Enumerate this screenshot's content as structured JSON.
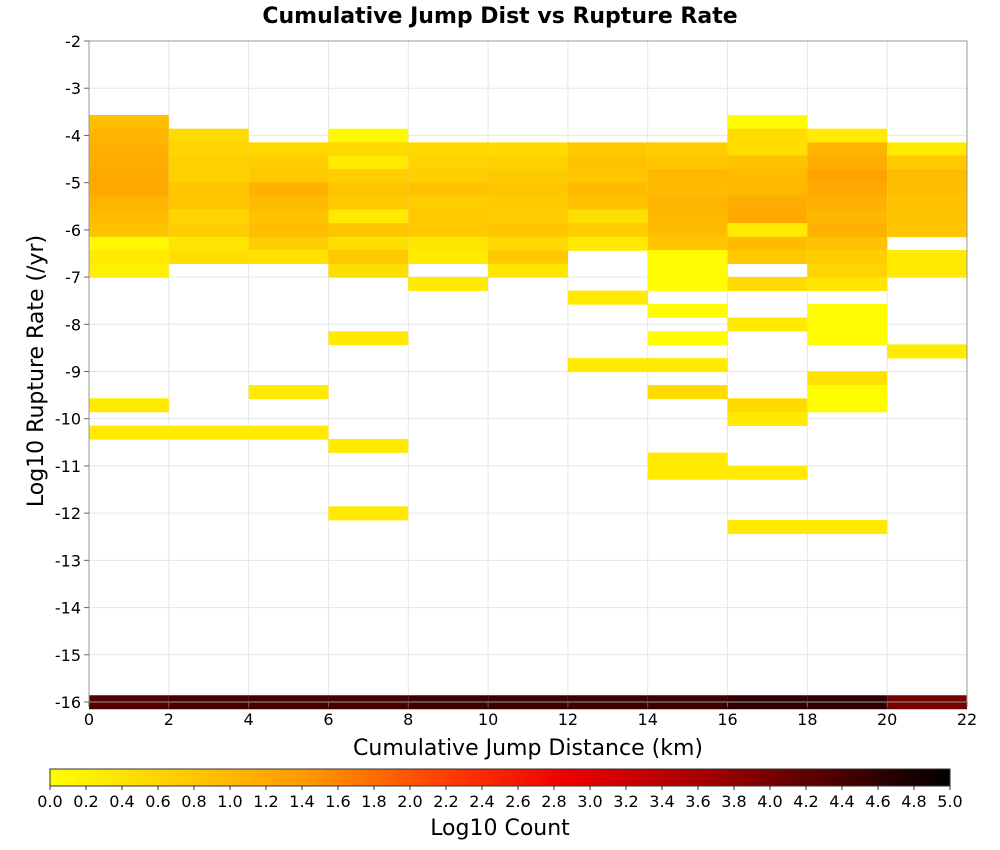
{
  "chart_data": {
    "type": "heatmap",
    "title": "Cumulative Jump Dist vs Rupture Rate",
    "xlabel": "Cumulative Jump Distance (km)",
    "ylabel": "Log10 Rupture Rate (/yr)",
    "xlim": [
      0,
      22
    ],
    "ylim": [
      -16,
      -2
    ],
    "xticks": [
      "0",
      "2",
      "4",
      "6",
      "8",
      "10",
      "12",
      "14",
      "16",
      "18",
      "20",
      "22"
    ],
    "yticks": [
      "-2",
      "-3",
      "-4",
      "-5",
      "-6",
      "-7",
      "-8",
      "-9",
      "-10",
      "-11",
      "-12",
      "-13",
      "-14",
      "-15",
      "-16"
    ],
    "grid": true,
    "colorbar": {
      "label": "Log10 Count",
      "range": [
        0,
        5
      ],
      "ticks": [
        "0.0",
        "0.2",
        "0.4",
        "0.6",
        "0.8",
        "1.0",
        "1.2",
        "1.4",
        "1.6",
        "1.8",
        "2.0",
        "2.2",
        "2.4",
        "2.6",
        "2.8",
        "3.0",
        "3.2",
        "3.4",
        "3.6",
        "3.8",
        "4.0",
        "4.2",
        "4.4",
        "4.6",
        "4.8",
        "5.0"
      ],
      "colormap": [
        "#ffff00",
        "#ffcc00",
        "#ff9900",
        "#ff4400",
        "#ee0000",
        "#aa0000",
        "#550000",
        "#000000"
      ]
    },
    "x_bin_width": 2,
    "y_bin_height": 0.286,
    "cells": [
      {
        "x0": 0,
        "y": -3.71,
        "v": 0.9
      },
      {
        "x0": 0,
        "y": -4.0,
        "v": 1.05
      },
      {
        "x0": 0,
        "y": -4.29,
        "v": 1.1
      },
      {
        "x0": 0,
        "y": -4.57,
        "v": 1.15
      },
      {
        "x0": 0,
        "y": -4.86,
        "v": 1.2
      },
      {
        "x0": 0,
        "y": -5.14,
        "v": 1.2
      },
      {
        "x0": 0,
        "y": -5.43,
        "v": 1.05
      },
      {
        "x0": 0,
        "y": -5.71,
        "v": 0.95
      },
      {
        "x0": 0,
        "y": -6.0,
        "v": 0.85
      },
      {
        "x0": 0,
        "y": -6.29,
        "v": 0.1
      },
      {
        "x0": 0,
        "y": -6.57,
        "v": 0.3
      },
      {
        "x0": 0,
        "y": -6.86,
        "v": 0.2
      },
      {
        "x0": 0,
        "y": -9.71,
        "v": 0.3
      },
      {
        "x0": 0,
        "y": -10.29,
        "v": 0.3
      },
      {
        "x0": 2,
        "y": -4.0,
        "v": 0.5
      },
      {
        "x0": 2,
        "y": -4.29,
        "v": 0.6
      },
      {
        "x0": 2,
        "y": -4.57,
        "v": 0.65
      },
      {
        "x0": 2,
        "y": -4.86,
        "v": 0.65
      },
      {
        "x0": 2,
        "y": -5.14,
        "v": 0.8
      },
      {
        "x0": 2,
        "y": -5.43,
        "v": 0.8
      },
      {
        "x0": 2,
        "y": -5.71,
        "v": 0.6
      },
      {
        "x0": 2,
        "y": -6.0,
        "v": 0.7
      },
      {
        "x0": 2,
        "y": -6.29,
        "v": 0.35
      },
      {
        "x0": 2,
        "y": -6.57,
        "v": 0.45
      },
      {
        "x0": 2,
        "y": -10.29,
        "v": 0.3
      },
      {
        "x0": 4,
        "y": -4.29,
        "v": 0.55
      },
      {
        "x0": 4,
        "y": -4.57,
        "v": 0.7
      },
      {
        "x0": 4,
        "y": -4.86,
        "v": 0.75
      },
      {
        "x0": 4,
        "y": -5.14,
        "v": 1.1
      },
      {
        "x0": 4,
        "y": -5.43,
        "v": 0.95
      },
      {
        "x0": 4,
        "y": -5.71,
        "v": 0.85
      },
      {
        "x0": 4,
        "y": -6.0,
        "v": 0.9
      },
      {
        "x0": 4,
        "y": -6.29,
        "v": 0.7
      },
      {
        "x0": 4,
        "y": -6.57,
        "v": 0.4
      },
      {
        "x0": 4,
        "y": -9.43,
        "v": 0.3
      },
      {
        "x0": 4,
        "y": -10.29,
        "v": 0.3
      },
      {
        "x0": 6,
        "y": -4.0,
        "v": 0.1
      },
      {
        "x0": 6,
        "y": -4.29,
        "v": 0.55
      },
      {
        "x0": 6,
        "y": -4.57,
        "v": 0.3
      },
      {
        "x0": 6,
        "y": -4.86,
        "v": 0.7
      },
      {
        "x0": 6,
        "y": -5.14,
        "v": 0.8
      },
      {
        "x0": 6,
        "y": -5.43,
        "v": 0.75
      },
      {
        "x0": 6,
        "y": -5.71,
        "v": 0.3
      },
      {
        "x0": 6,
        "y": -6.0,
        "v": 0.8
      },
      {
        "x0": 6,
        "y": -6.29,
        "v": 0.45
      },
      {
        "x0": 6,
        "y": -6.57,
        "v": 0.75
      },
      {
        "x0": 6,
        "y": -6.86,
        "v": 0.45
      },
      {
        "x0": 6,
        "y": -8.29,
        "v": 0.3
      },
      {
        "x0": 6,
        "y": -10.57,
        "v": 0.3
      },
      {
        "x0": 6,
        "y": -12.0,
        "v": 0.3
      },
      {
        "x0": 8,
        "y": -4.29,
        "v": 0.55
      },
      {
        "x0": 8,
        "y": -4.57,
        "v": 0.6
      },
      {
        "x0": 8,
        "y": -4.86,
        "v": 0.7
      },
      {
        "x0": 8,
        "y": -5.14,
        "v": 0.85
      },
      {
        "x0": 8,
        "y": -5.43,
        "v": 0.7
      },
      {
        "x0": 8,
        "y": -5.71,
        "v": 0.75
      },
      {
        "x0": 8,
        "y": -6.0,
        "v": 0.75
      },
      {
        "x0": 8,
        "y": -6.29,
        "v": 0.35
      },
      {
        "x0": 8,
        "y": -6.57,
        "v": 0.3
      },
      {
        "x0": 8,
        "y": -7.14,
        "v": 0.3
      },
      {
        "x0": 10,
        "y": -4.29,
        "v": 0.5
      },
      {
        "x0": 10,
        "y": -4.57,
        "v": 0.65
      },
      {
        "x0": 10,
        "y": -4.86,
        "v": 0.75
      },
      {
        "x0": 10,
        "y": -5.14,
        "v": 0.8
      },
      {
        "x0": 10,
        "y": -5.43,
        "v": 0.75
      },
      {
        "x0": 10,
        "y": -5.71,
        "v": 0.7
      },
      {
        "x0": 10,
        "y": -6.0,
        "v": 0.8
      },
      {
        "x0": 10,
        "y": -6.29,
        "v": 0.55
      },
      {
        "x0": 10,
        "y": -6.57,
        "v": 0.75
      },
      {
        "x0": 10,
        "y": -6.86,
        "v": 0.35
      },
      {
        "x0": 12,
        "y": -4.29,
        "v": 0.75
      },
      {
        "x0": 12,
        "y": -4.57,
        "v": 0.85
      },
      {
        "x0": 12,
        "y": -4.86,
        "v": 0.8
      },
      {
        "x0": 12,
        "y": -5.14,
        "v": 0.95
      },
      {
        "x0": 12,
        "y": -5.43,
        "v": 0.85
      },
      {
        "x0": 12,
        "y": -5.71,
        "v": 0.45
      },
      {
        "x0": 12,
        "y": -6.0,
        "v": 0.7
      },
      {
        "x0": 12,
        "y": -6.29,
        "v": 0.3
      },
      {
        "x0": 12,
        "y": -7.43,
        "v": 0.3
      },
      {
        "x0": 12,
        "y": -8.86,
        "v": 0.3
      },
      {
        "x0": 14,
        "y": -4.29,
        "v": 0.7
      },
      {
        "x0": 14,
        "y": -4.57,
        "v": 0.8
      },
      {
        "x0": 14,
        "y": -4.86,
        "v": 1.0
      },
      {
        "x0": 14,
        "y": -5.14,
        "v": 0.95
      },
      {
        "x0": 14,
        "y": -5.43,
        "v": 1.05
      },
      {
        "x0": 14,
        "y": -5.71,
        "v": 1.0
      },
      {
        "x0": 14,
        "y": -6.0,
        "v": 0.95
      },
      {
        "x0": 14,
        "y": -6.29,
        "v": 0.8
      },
      {
        "x0": 14,
        "y": -6.57,
        "v": 0.05
      },
      {
        "x0": 14,
        "y": -6.86,
        "v": 0.05
      },
      {
        "x0": 14,
        "y": -7.14,
        "v": 0.05
      },
      {
        "x0": 14,
        "y": -7.71,
        "v": 0.05
      },
      {
        "x0": 14,
        "y": -8.29,
        "v": 0.05
      },
      {
        "x0": 14,
        "y": -8.86,
        "v": 0.3
      },
      {
        "x0": 14,
        "y": -9.43,
        "v": 0.5
      },
      {
        "x0": 14,
        "y": -10.86,
        "v": 0.3
      },
      {
        "x0": 14,
        "y": -11.14,
        "v": 0.3
      },
      {
        "x0": 16,
        "y": -3.71,
        "v": 0.05
      },
      {
        "x0": 16,
        "y": -4.0,
        "v": 0.5
      },
      {
        "x0": 16,
        "y": -4.29,
        "v": 0.45
      },
      {
        "x0": 16,
        "y": -4.57,
        "v": 0.85
      },
      {
        "x0": 16,
        "y": -4.86,
        "v": 0.95
      },
      {
        "x0": 16,
        "y": -5.14,
        "v": 1.0
      },
      {
        "x0": 16,
        "y": -5.43,
        "v": 1.15
      },
      {
        "x0": 16,
        "y": -5.71,
        "v": 1.2
      },
      {
        "x0": 16,
        "y": -6.0,
        "v": 0.3
      },
      {
        "x0": 16,
        "y": -6.29,
        "v": 0.95
      },
      {
        "x0": 16,
        "y": -6.57,
        "v": 0.75
      },
      {
        "x0": 16,
        "y": -7.14,
        "v": 0.5
      },
      {
        "x0": 16,
        "y": -8.0,
        "v": 0.3
      },
      {
        "x0": 16,
        "y": -9.71,
        "v": 0.5
      },
      {
        "x0": 16,
        "y": -10.0,
        "v": 0.3
      },
      {
        "x0": 16,
        "y": -11.14,
        "v": 0.3
      },
      {
        "x0": 16,
        "y": -12.29,
        "v": 0.3
      },
      {
        "x0": 18,
        "y": -4.0,
        "v": 0.3
      },
      {
        "x0": 18,
        "y": -4.29,
        "v": 1.05
      },
      {
        "x0": 18,
        "y": -4.57,
        "v": 1.15
      },
      {
        "x0": 18,
        "y": -4.86,
        "v": 1.3
      },
      {
        "x0": 18,
        "y": -5.14,
        "v": 1.2
      },
      {
        "x0": 18,
        "y": -5.43,
        "v": 1.1
      },
      {
        "x0": 18,
        "y": -5.71,
        "v": 1.0
      },
      {
        "x0": 18,
        "y": -6.0,
        "v": 1.1
      },
      {
        "x0": 18,
        "y": -6.29,
        "v": 0.85
      },
      {
        "x0": 18,
        "y": -6.57,
        "v": 0.7
      },
      {
        "x0": 18,
        "y": -6.86,
        "v": 0.6
      },
      {
        "x0": 18,
        "y": -7.14,
        "v": 0.35
      },
      {
        "x0": 18,
        "y": -7.71,
        "v": 0.05
      },
      {
        "x0": 18,
        "y": -8.0,
        "v": 0.05
      },
      {
        "x0": 18,
        "y": -8.29,
        "v": 0.05
      },
      {
        "x0": 18,
        "y": -9.14,
        "v": 0.4
      },
      {
        "x0": 18,
        "y": -9.43,
        "v": 0.05
      },
      {
        "x0": 18,
        "y": -9.71,
        "v": 0.05
      },
      {
        "x0": 18,
        "y": -12.29,
        "v": 0.3
      },
      {
        "x0": 20,
        "y": -4.29,
        "v": 0.3
      },
      {
        "x0": 20,
        "y": -4.57,
        "v": 0.75
      },
      {
        "x0": 20,
        "y": -4.86,
        "v": 0.95
      },
      {
        "x0": 20,
        "y": -5.14,
        "v": 0.9
      },
      {
        "x0": 20,
        "y": -5.43,
        "v": 0.85
      },
      {
        "x0": 20,
        "y": -5.71,
        "v": 0.85
      },
      {
        "x0": 20,
        "y": -6.0,
        "v": 0.8
      },
      {
        "x0": 20,
        "y": -6.57,
        "v": 0.3
      },
      {
        "x0": 20,
        "y": -6.86,
        "v": 0.3
      },
      {
        "x0": 20,
        "y": -8.57,
        "v": 0.3
      },
      {
        "x0": 0,
        "y": -16.0,
        "v": 4.3
      },
      {
        "x0": 2,
        "y": -16.0,
        "v": 4.4
      },
      {
        "x0": 4,
        "y": -16.0,
        "v": 4.4
      },
      {
        "x0": 6,
        "y": -16.0,
        "v": 4.4
      },
      {
        "x0": 8,
        "y": -16.0,
        "v": 4.5
      },
      {
        "x0": 10,
        "y": -16.0,
        "v": 4.5
      },
      {
        "x0": 12,
        "y": -16.0,
        "v": 4.5
      },
      {
        "x0": 14,
        "y": -16.0,
        "v": 4.5
      },
      {
        "x0": 16,
        "y": -16.0,
        "v": 4.6
      },
      {
        "x0": 18,
        "y": -16.0,
        "v": 4.6
      },
      {
        "x0": 20,
        "y": -16.0,
        "v": 4.0
      }
    ]
  }
}
